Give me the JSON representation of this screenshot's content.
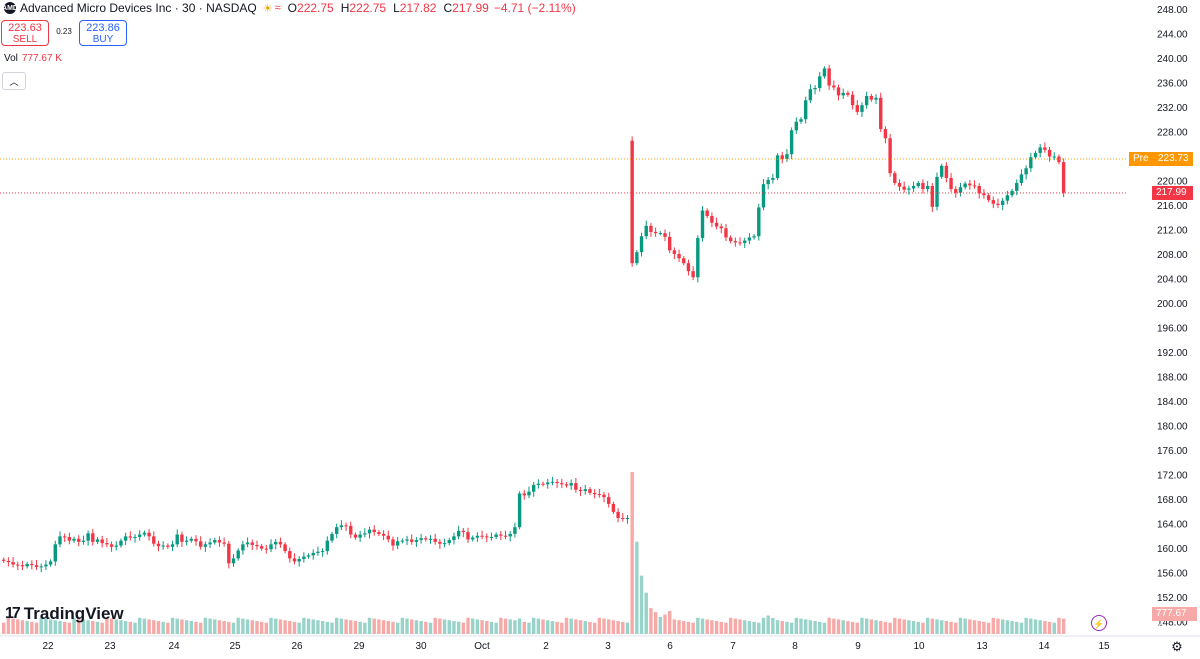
{
  "header": {
    "logo_text": "AMD",
    "symbol": "Advanced Micro Devices Inc · 30 · NASDAQ",
    "session_icon": "sun-icon",
    "status_icon": "wave-icon",
    "open_label": "O",
    "open": "222.75",
    "high_label": "H",
    "high": "222.75",
    "low_label": "L",
    "low": "217.82",
    "close_label": "C",
    "close": "217.99",
    "change": "−4.71 (−2.11%)"
  },
  "trade": {
    "sell_price": "223.63",
    "sell_label": "SELL",
    "spread": "0.23",
    "buy_price": "223.86",
    "buy_label": "BUY"
  },
  "volume": {
    "label": "Vol",
    "value": "777.67 K",
    "axis_tag": "777.67 K"
  },
  "collapse_icon": "chevron-up-icon",
  "brand": {
    "mark": "17",
    "name": "TradingView"
  },
  "price_tags": {
    "pre_label": "Pre",
    "pre_price": "223.73",
    "last_price": "217.99"
  },
  "colors": {
    "up": "#089981",
    "down": "#f23645",
    "pre": "#ff9800",
    "vol_up": "#98d3c9",
    "vol_down": "#f7a9a7"
  },
  "icons": {
    "settings": "gear-icon",
    "bolt": "lightning-icon"
  },
  "chart_data": {
    "type": "candlestick",
    "y_ticks": [
      "248.00",
      "244.00",
      "240.00",
      "236.00",
      "232.00",
      "228.00",
      "224.00",
      "220.00",
      "216.00",
      "212.00",
      "208.00",
      "204.00",
      "200.00",
      "196.00",
      "192.00",
      "188.00",
      "184.00",
      "180.00",
      "176.00",
      "172.00",
      "168.00",
      "164.00",
      "160.00",
      "156.00",
      "152.00",
      "148.00"
    ],
    "ylim": [
      146,
      250
    ],
    "x_ticks": [
      "22",
      "23",
      "24",
      "25",
      "26",
      "29",
      "30",
      "Oct",
      "2",
      "3",
      "6",
      "7",
      "8",
      "9",
      "10",
      "13",
      "14",
      "15"
    ],
    "pre_market_price": 223.73,
    "last_price": 217.99,
    "bar_closes": [
      157.9,
      157.7,
      157.3,
      157.2,
      157.0,
      157.4,
      157.2,
      156.9,
      157.0,
      157.3,
      157.8,
      160.6,
      161.9,
      161.8,
      161.2,
      161.5,
      161.0,
      161.2,
      162.4,
      161.0,
      161.4,
      160.8,
      160.6,
      160.2,
      160.4,
      161.2,
      161.9,
      161.7,
      161.8,
      162.2,
      162.5,
      161.9,
      160.7,
      160.3,
      160.4,
      160.2,
      160.6,
      162.2,
      161.0,
      161.2,
      161.5,
      161.1,
      160.2,
      160.6,
      160.9,
      161.3,
      160.9,
      160.7,
      157.5,
      158.3,
      159.6,
      160.6,
      160.9,
      160.5,
      160.3,
      159.9,
      159.8,
      160.6,
      161.0,
      160.6,
      159.5,
      158.3,
      157.8,
      158.2,
      158.6,
      158.8,
      159.2,
      159.4,
      159.5,
      161.2,
      162.3,
      163.4,
      163.7,
      163.6,
      162.2,
      161.7,
      162.2,
      162.4,
      163.0,
      162.6,
      162.3,
      162.0,
      161.4,
      160.4,
      161.1,
      161.2,
      161.4,
      161.0,
      161.3,
      161.6,
      161.4,
      161.5,
      161.0,
      160.7,
      160.8,
      161.3,
      161.9,
      162.8,
      162.6,
      161.4,
      161.7,
      162.0,
      161.9,
      161.8,
      161.8,
      162.2,
      162.0,
      161.9,
      162.3,
      163.4,
      168.9,
      168.6,
      169.2,
      170.3,
      170.5,
      170.4,
      170.7,
      170.8,
      170.6,
      170.4,
      170.2,
      170.6,
      169.5,
      169.3,
      169.6,
      169.0,
      168.8,
      168.7,
      168.3,
      167.2,
      165.9,
      164.9,
      164.8,
      164.9,
      206.5,
      208.3,
      210.9,
      212.6,
      211.6,
      211.4,
      211.4,
      210.8,
      208.6,
      208.0,
      207.3,
      206.5,
      205.2,
      204.2,
      210.6,
      215.1,
      214.2,
      213.1,
      212.5,
      212.2,
      210.7,
      210.1,
      209.9,
      209.8,
      210.2,
      210.7,
      210.9,
      215.6,
      219.4,
      220.1,
      220.4,
      224.1,
      223.5,
      224.3,
      228.2,
      229.6,
      230.0,
      233.1,
      234.9,
      235.1,
      237.0,
      238.3,
      235.5,
      235.2,
      233.9,
      234.3,
      234.0,
      232.3,
      231.2,
      232.3,
      233.8,
      233.2,
      233.5,
      228.4,
      226.9,
      221.2,
      219.6,
      219.0,
      218.5,
      218.7,
      219.1,
      219.6,
      218.6,
      219.1,
      215.7,
      220.6,
      222.4,
      220.4,
      218.6,
      218.0,
      218.9,
      219.5,
      219.2,
      219.1,
      217.9,
      217.6,
      216.8,
      216.2,
      216.0,
      216.7,
      217.6,
      218.3,
      219.6,
      221.0,
      222.0,
      223.8,
      224.5,
      225.4,
      225.0,
      223.9,
      223.9,
      223.0,
      218.0
    ],
    "volume_relative": [
      0.1,
      0.1,
      0.1,
      0.1,
      0.1,
      0.1,
      0.1,
      0.1,
      0.1,
      0.1,
      0.1,
      0.1,
      0.1,
      0.1,
      0.1,
      0.1,
      0.1,
      0.1,
      0.1,
      0.1,
      0.1,
      0.1,
      0.1,
      0.1,
      0.1,
      0.1,
      0.1,
      0.1,
      0.1,
      0.1,
      0.1,
      0.1,
      0.1,
      0.1,
      0.1,
      0.1,
      0.1,
      0.1,
      0.1,
      0.1,
      0.1,
      0.1,
      0.1,
      0.1,
      0.1,
      0.1,
      0.1,
      0.1,
      0.1,
      0.1,
      0.1,
      0.1,
      0.1,
      0.1,
      0.1,
      0.1,
      0.1,
      0.1,
      0.1,
      0.1,
      0.1,
      0.1,
      0.1,
      0.1,
      0.1,
      0.1,
      0.1,
      0.1,
      0.1,
      0.1,
      0.1,
      0.1,
      0.1,
      0.1,
      0.1,
      0.1,
      0.1,
      0.1,
      0.1,
      0.1,
      0.1,
      0.1,
      0.1,
      0.1,
      0.1,
      0.1,
      0.1,
      0.1,
      0.1,
      0.1,
      0.1,
      0.1,
      0.1,
      0.1,
      0.1,
      0.1,
      0.1,
      0.1,
      0.1,
      0.1,
      0.1,
      0.1,
      0.1,
      0.1,
      0.1,
      0.1,
      0.1,
      0.1,
      0.1,
      0.1,
      0.12,
      0.1,
      0.1,
      0.1,
      0.1,
      0.1,
      0.1,
      0.1,
      0.1,
      0.1,
      0.1,
      0.1,
      0.1,
      0.1,
      0.1,
      0.1,
      0.1,
      0.1,
      0.1,
      0.1,
      0.1,
      0.1,
      0.1,
      0.1,
      1.0,
      0.6,
      0.4,
      0.3,
      0.2,
      0.18,
      0.15,
      0.12,
      0.15,
      0.1,
      0.1,
      0.1,
      0.1,
      0.1,
      0.1,
      0.1,
      0.1,
      0.1,
      0.1,
      0.1,
      0.1,
      0.1,
      0.1,
      0.1,
      0.1,
      0.1,
      0.1,
      0.1,
      0.1,
      0.12,
      0.11,
      0.1,
      0.1,
      0.1,
      0.1,
      0.1,
      0.1,
      0.1,
      0.1,
      0.1,
      0.1,
      0.1,
      0.1,
      0.1,
      0.1,
      0.1,
      0.1,
      0.1,
      0.1,
      0.1,
      0.1,
      0.1,
      0.1,
      0.1,
      0.1,
      0.1,
      0.1,
      0.1,
      0.1,
      0.1,
      0.1,
      0.1,
      0.1,
      0.1,
      0.1,
      0.1,
      0.1,
      0.1,
      0.1,
      0.1,
      0.1,
      0.1,
      0.1,
      0.1,
      0.1,
      0.1,
      0.1,
      0.1,
      0.1,
      0.1,
      0.1,
      0.1,
      0.1,
      0.1,
      0.1,
      0.1,
      0.1,
      0.1
    ]
  }
}
